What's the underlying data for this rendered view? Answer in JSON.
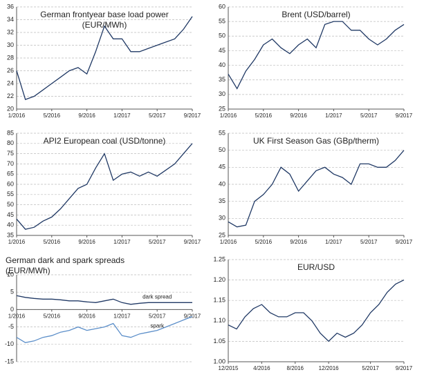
{
  "chart_data": [
    {
      "type": "line",
      "title": "German frontyear base load power",
      "subtitle": "(EUR/MWh)",
      "categories": [
        "1/2016",
        null,
        null,
        null,
        "5/2016",
        null,
        null,
        null,
        "9/2016",
        null,
        null,
        null,
        "1/2017",
        null,
        null,
        null,
        "5/2017",
        null,
        null,
        null,
        "9/2017"
      ],
      "series": [
        {
          "name": "German frontyear",
          "color": "#1f3864",
          "values": [
            26,
            21.5,
            22,
            23,
            24,
            25,
            26,
            26.5,
            25.5,
            29,
            33,
            31,
            31,
            29,
            29,
            29.5,
            30,
            30.5,
            31,
            32.5,
            34.5
          ]
        }
      ],
      "ylim": [
        20,
        36
      ],
      "yticks": [
        20,
        22,
        24,
        26,
        28,
        30,
        32,
        34,
        36
      ],
      "grid": true
    },
    {
      "type": "line",
      "title": "Brent (USD/barrel)",
      "categories": [
        "1/2016",
        null,
        null,
        null,
        "5/2016",
        null,
        null,
        null,
        "9/2016",
        null,
        null,
        null,
        "1/2017",
        null,
        null,
        null,
        "5/2017",
        null,
        null,
        null,
        "9/2017"
      ],
      "series": [
        {
          "name": "Brent",
          "color": "#1f3864",
          "values": [
            37,
            32,
            38,
            42,
            47,
            49,
            46,
            44,
            47,
            49,
            46,
            54,
            55,
            55,
            52,
            52,
            49,
            47,
            49,
            52,
            54
          ]
        }
      ],
      "ylim": [
        25,
        60
      ],
      "yticks": [
        25,
        30,
        35,
        40,
        45,
        50,
        55,
        60
      ],
      "grid": true
    },
    {
      "type": "line",
      "title": "API2 European coal (USD/tonne)",
      "categories": [
        "1/2016",
        null,
        null,
        null,
        "5/2016",
        null,
        null,
        null,
        "9/2016",
        null,
        null,
        null,
        "1/2017",
        null,
        null,
        null,
        "5/2017",
        null,
        null,
        null,
        "9/2017"
      ],
      "series": [
        {
          "name": "API2",
          "color": "#1f3864",
          "values": [
            43,
            38,
            39,
            42,
            44,
            48,
            53,
            58,
            60,
            68,
            75,
            62,
            65,
            66,
            64,
            66,
            64,
            67,
            70,
            75,
            80
          ]
        }
      ],
      "ylim": [
        35,
        85
      ],
      "yticks": [
        35,
        40,
        45,
        50,
        55,
        60,
        65,
        70,
        75,
        80,
        85
      ],
      "grid": true
    },
    {
      "type": "line",
      "title": "UK First Season Gas (GBp/therm)",
      "categories": [
        "1/2016",
        null,
        null,
        null,
        "5/2016",
        null,
        null,
        null,
        "9/2016",
        null,
        null,
        null,
        "1/2017",
        null,
        null,
        null,
        "5/2017",
        null,
        null,
        null,
        "9/2017"
      ],
      "series": [
        {
          "name": "UK gas",
          "color": "#1f3864",
          "values": [
            29,
            27.5,
            28,
            35,
            37,
            40,
            45,
            43,
            38,
            41,
            44,
            45,
            43,
            42,
            40,
            46,
            46,
            45,
            45,
            47,
            50
          ]
        }
      ],
      "ylim": [
        25,
        55
      ],
      "yticks": [
        25,
        30,
        35,
        40,
        45,
        50,
        55
      ],
      "grid": true
    },
    {
      "type": "line",
      "title": "German dark and spark spreads",
      "subtitle": "(EUR/MWh)",
      "categories": [
        "1/2016",
        null,
        null,
        null,
        "5/2016",
        null,
        null,
        null,
        "9/2016",
        null,
        null,
        null,
        "1/2017",
        null,
        null,
        null,
        "5/2017",
        null,
        null,
        null,
        "9/2017"
      ],
      "series": [
        {
          "name": "dark spread",
          "color": "#1f3864",
          "values": [
            4,
            3.5,
            3.2,
            3,
            3,
            2.8,
            2.5,
            2.5,
            2.2,
            2,
            2.5,
            3,
            2,
            1.5,
            1.8,
            2,
            2,
            2,
            2,
            2,
            2
          ]
        },
        {
          "name": "spark",
          "color": "#5b8ec9",
          "values": [
            -8,
            -9.5,
            -9,
            -8,
            -7.5,
            -6.5,
            -6,
            -5,
            -6,
            -5.5,
            -5,
            -4,
            -7.5,
            -8,
            -7,
            -6.5,
            -6,
            -5,
            -4,
            -3,
            -2
          ]
        }
      ],
      "ylim": [
        -15,
        10
      ],
      "yticks": [
        -15,
        -10,
        -5,
        0,
        5,
        10
      ],
      "grid": true
    },
    {
      "type": "line",
      "title": "EUR/USD",
      "categories": [
        "12/2015",
        null,
        null,
        null,
        "4/2016",
        null,
        null,
        null,
        "8/2016",
        null,
        null,
        null,
        "12/2016",
        null,
        null,
        null,
        null,
        "5/2017",
        null,
        null,
        null,
        "9/2017"
      ],
      "series": [
        {
          "name": "EUR/USD",
          "color": "#1f3864",
          "values": [
            1.09,
            1.08,
            1.11,
            1.13,
            1.14,
            1.12,
            1.11,
            1.11,
            1.12,
            1.12,
            1.1,
            1.07,
            1.05,
            1.07,
            1.06,
            1.07,
            1.09,
            1.12,
            1.14,
            1.17,
            1.19,
            1.2
          ]
        }
      ],
      "ylim": [
        1.0,
        1.25
      ],
      "yticks": [
        {
          "value": 1.0,
          "label": "1.00"
        },
        1.05,
        {
          "value": 1.1,
          "label": "1.10"
        },
        1.15,
        {
          "value": 1.2,
          "label": "1.20"
        },
        1.25
      ],
      "grid": true
    }
  ]
}
